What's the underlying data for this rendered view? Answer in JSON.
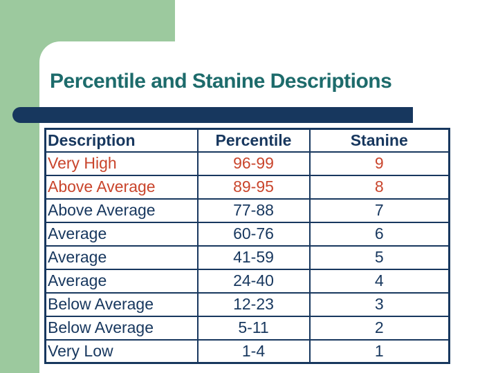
{
  "slide": {
    "title": "Percentile and Stanine Descriptions"
  },
  "colors": {
    "corner_block_green": "#9CC99E",
    "navy": "#17375E",
    "title_teal": "#1D6B6B",
    "highlight_orange": "#C9452C"
  },
  "table": {
    "headers": {
      "description": "Description",
      "percentile": "Percentile",
      "stanine": "Stanine"
    },
    "rows": [
      {
        "description": "Very High",
        "percentile": "96-99",
        "stanine": "9",
        "tone": "orange"
      },
      {
        "description": "Above Average",
        "percentile": "89-95",
        "stanine": "8",
        "tone": "orange"
      },
      {
        "description": "Above Average",
        "percentile": "77-88",
        "stanine": "7",
        "tone": "navy"
      },
      {
        "description": "Average",
        "percentile": "60-76",
        "stanine": "6",
        "tone": "navy"
      },
      {
        "description": "Average",
        "percentile": "41-59",
        "stanine": "5",
        "tone": "navy"
      },
      {
        "description": "Average",
        "percentile": "24-40",
        "stanine": "4",
        "tone": "navy"
      },
      {
        "description": "Below Average",
        "percentile": "12-23",
        "stanine": "3",
        "tone": "navy"
      },
      {
        "description": "Below Average",
        "percentile": "5-11",
        "stanine": "2",
        "tone": "navy"
      },
      {
        "description": "Very Low",
        "percentile": "1-4",
        "stanine": "1",
        "tone": "navy"
      }
    ]
  }
}
